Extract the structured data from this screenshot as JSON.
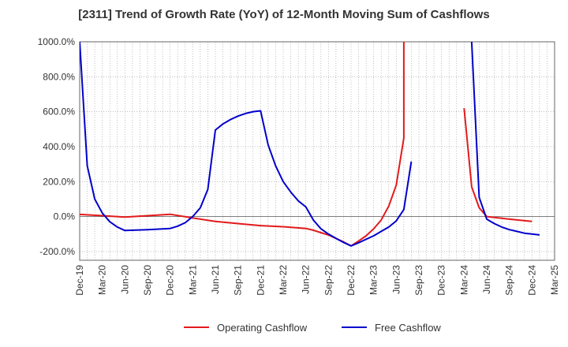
{
  "chart_data": {
    "type": "line",
    "title": "[2311]  Trend of Growth Rate (YoY) of 12-Month Moving Sum of Cashflows",
    "y_ticks": [
      "1000.0%",
      "800.0%",
      "600.0%",
      "400.0%",
      "200.0%",
      "0.0%",
      "-200.0%"
    ],
    "y_tick_values": [
      1000,
      800,
      600,
      400,
      200,
      0,
      -200
    ],
    "ylim": [
      -250,
      1000
    ],
    "x_ticks": [
      "Dec-19",
      "Mar-20",
      "Jun-20",
      "Sep-20",
      "Dec-20",
      "Mar-21",
      "Jun-21",
      "Sep-21",
      "Dec-21",
      "Mar-22",
      "Jun-22",
      "Sep-22",
      "Dec-22",
      "Mar-23",
      "Jun-23",
      "Sep-23",
      "Dec-23",
      "Mar-24",
      "Jun-24",
      "Sep-24",
      "Dec-24",
      "Mar-25"
    ],
    "x_range_months": [
      "Dec-19",
      "Mar-25"
    ],
    "grid": true,
    "legend_position": "bottom-center",
    "series": [
      {
        "name": "Operating Cashflow",
        "color": "#e31a1c",
        "points": [
          [
            "Dec-19",
            12
          ],
          [
            "Mar-20",
            5
          ],
          [
            "Jun-20",
            -3
          ],
          [
            "Sep-20",
            5
          ],
          [
            "Dec-20",
            13
          ],
          [
            "Mar-21",
            -8
          ],
          [
            "Jun-21",
            -28
          ],
          [
            "Sep-21",
            -40
          ],
          [
            "Dec-21",
            -52
          ],
          [
            "Mar-22",
            -58
          ],
          [
            "Jun-22",
            -68
          ],
          [
            "Jul-22",
            -78
          ],
          [
            "Aug-22",
            -92
          ],
          [
            "Sep-22",
            -105
          ],
          [
            "Oct-22",
            -125
          ],
          [
            "Nov-22",
            -145
          ],
          [
            "Dec-22",
            -168
          ],
          [
            "Jan-23",
            -140
          ],
          [
            "Feb-23",
            -110
          ],
          [
            "Mar-23",
            -70
          ],
          [
            "Apr-23",
            -20
          ],
          [
            "May-23",
            60
          ],
          [
            "Jun-23",
            180
          ],
          [
            "Jul-23",
            450
          ],
          [
            "Jul-23",
            1000
          ]
        ]
      },
      {
        "name": "Operating Cashflow",
        "color": "#e31a1c",
        "points": [
          [
            "Mar-24",
            620
          ],
          [
            "Apr-24",
            170
          ],
          [
            "May-24",
            50
          ],
          [
            "Jun-24",
            0
          ],
          [
            "Jul-24",
            -5
          ],
          [
            "Sep-24",
            -15
          ],
          [
            "Dec-24",
            -28
          ]
        ]
      },
      {
        "name": "Free Cashflow",
        "color": "#0000cc",
        "points": [
          [
            "Dec-19",
            1000
          ],
          [
            "Jan-20",
            290
          ],
          [
            "Feb-20",
            100
          ],
          [
            "Mar-20",
            20
          ],
          [
            "Apr-20",
            -30
          ],
          [
            "May-20",
            -60
          ],
          [
            "Jun-20",
            -80
          ],
          [
            "Sep-20",
            -75
          ],
          [
            "Dec-20",
            -68
          ],
          [
            "Jan-21",
            -55
          ],
          [
            "Feb-21",
            -35
          ],
          [
            "Mar-21",
            0
          ],
          [
            "Apr-21",
            50
          ],
          [
            "May-21",
            155
          ],
          [
            "Jun-21",
            495
          ],
          [
            "Jul-21",
            530
          ],
          [
            "Aug-21",
            555
          ],
          [
            "Sep-21",
            575
          ],
          [
            "Oct-21",
            590
          ],
          [
            "Nov-21",
            600
          ],
          [
            "Dec-21",
            605
          ],
          [
            "Jan-22",
            410
          ],
          [
            "Feb-22",
            290
          ],
          [
            "Mar-22",
            200
          ],
          [
            "Apr-22",
            140
          ],
          [
            "May-22",
            90
          ],
          [
            "Jun-22",
            55
          ],
          [
            "Jul-22",
            -20
          ],
          [
            "Aug-22",
            -70
          ],
          [
            "Sep-22",
            -100
          ],
          [
            "Oct-22",
            -125
          ],
          [
            "Nov-22",
            -148
          ],
          [
            "Dec-22",
            -168
          ],
          [
            "Jan-23",
            -150
          ],
          [
            "Feb-23",
            -130
          ],
          [
            "Mar-23",
            -110
          ],
          [
            "Apr-23",
            -85
          ],
          [
            "May-23",
            -60
          ],
          [
            "Jun-23",
            -25
          ],
          [
            "Jul-23",
            40
          ],
          [
            "Aug-23",
            315
          ]
        ]
      },
      {
        "name": "Free Cashflow",
        "color": "#0000cc",
        "points": [
          [
            "Apr-24",
            1000
          ],
          [
            "May-24",
            110
          ],
          [
            "Jun-24",
            -15
          ],
          [
            "Jul-24",
            -40
          ],
          [
            "Aug-24",
            -60
          ],
          [
            "Sep-24",
            -75
          ],
          [
            "Oct-24",
            -85
          ],
          [
            "Nov-24",
            -95
          ],
          [
            "Dec-24",
            -100
          ],
          [
            "Jan-25",
            -105
          ]
        ]
      }
    ],
    "legend": [
      {
        "label": "Operating Cashflow",
        "color": "#e31a1c"
      },
      {
        "label": "Free Cashflow",
        "color": "#0000cc"
      }
    ]
  }
}
